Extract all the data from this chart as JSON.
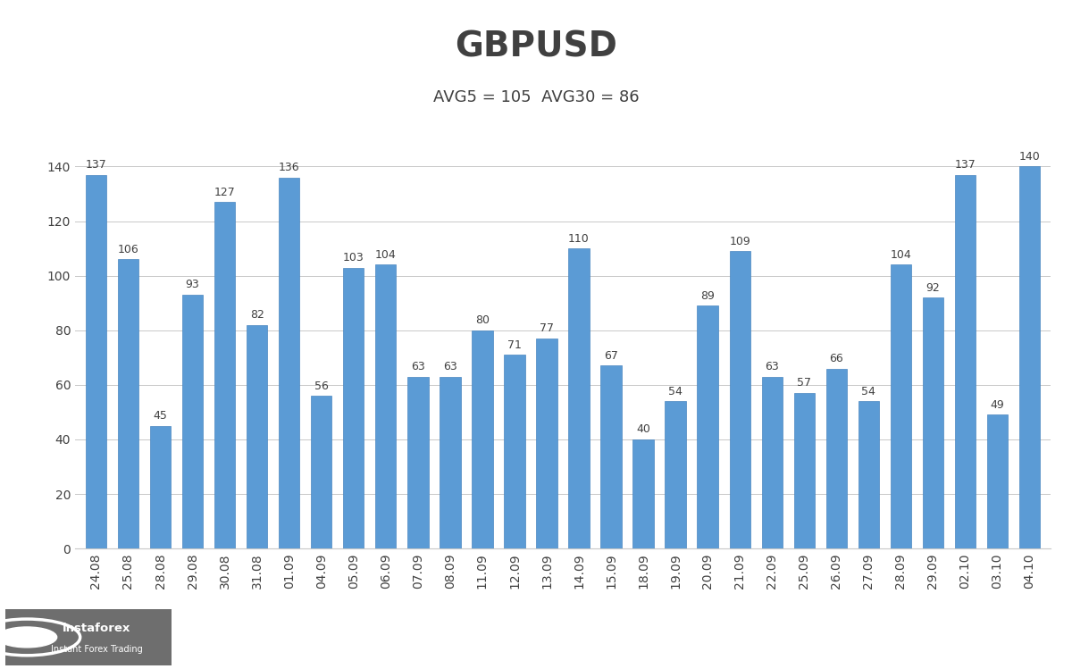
{
  "title": "GBPUSD",
  "subtitle": "AVG5 = 105  AVG30 = 86",
  "categories": [
    "24.08",
    "25.08",
    "28.08",
    "29.08",
    "30.08",
    "31.08",
    "01.09",
    "04.09",
    "05.09",
    "06.09",
    "07.09",
    "08.09",
    "11.09",
    "12.09",
    "13.09",
    "14.09",
    "15.09",
    "18.09",
    "19.09",
    "20.09",
    "21.09",
    "22.09",
    "25.09",
    "26.09",
    "27.09",
    "28.09",
    "29.09",
    "02.10",
    "03.10",
    "04.10"
  ],
  "values": [
    137,
    106,
    45,
    93,
    127,
    82,
    136,
    56,
    103,
    104,
    63,
    63,
    80,
    71,
    77,
    110,
    67,
    40,
    54,
    89,
    109,
    63,
    57,
    66,
    54,
    104,
    92,
    137,
    49,
    140
  ],
  "bar_color": "#5B9BD5",
  "bar_edge_color": "#4A86C0",
  "background_color": "#FFFFFF",
  "title_color": "#404040",
  "subtitle_color": "#404040",
  "label_color": "#404040",
  "tick_color": "#404040",
  "grid_color": "#C8C8C8",
  "ylim": [
    0,
    152
  ],
  "yticks": [
    0,
    20,
    40,
    60,
    80,
    100,
    120,
    140
  ],
  "title_fontsize": 28,
  "subtitle_fontsize": 13,
  "bar_label_fontsize": 9,
  "tick_fontsize": 10,
  "logo_bg_color": "#6E6E6E"
}
